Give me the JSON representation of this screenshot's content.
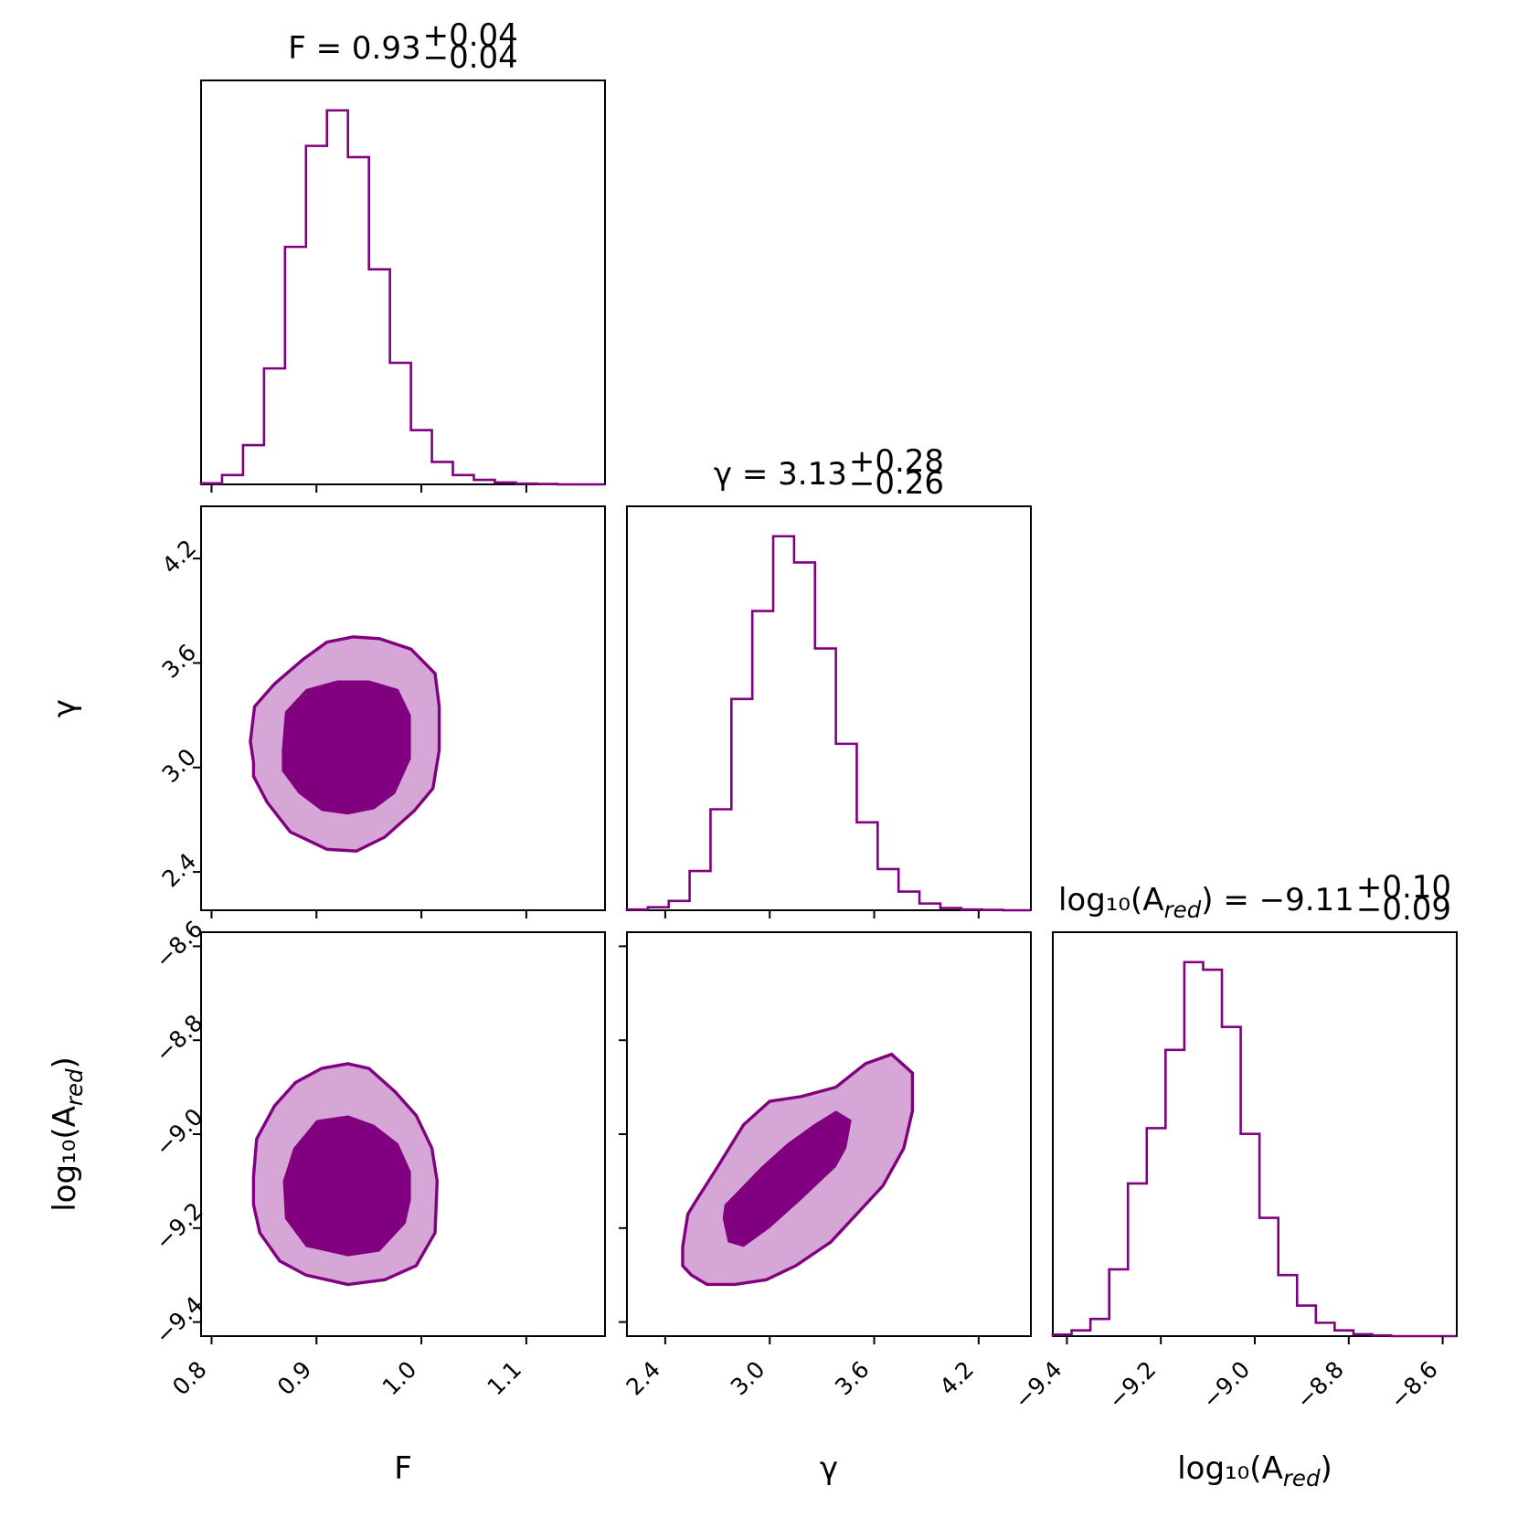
{
  "colors": {
    "series": "#800080",
    "inner_fill": "#800080",
    "outer_fill": "#d6a7d6"
  },
  "chart_data": {
    "type": "corner",
    "parameters": [
      {
        "key": "F",
        "title_prefix": "F = ",
        "median": "0.93",
        "plus": "+0.04",
        "minus": "−0.04",
        "range": [
          0.79,
          1.175
        ],
        "ticks": [
          0.8,
          0.9,
          1.0,
          1.1
        ],
        "tick_labels": [
          "0.8",
          "0.9",
          "1.0",
          "1.1"
        ],
        "hist": {
          "edges": [
            0.79,
            0.81,
            0.83,
            0.85,
            0.87,
            0.89,
            0.91,
            0.93,
            0.95,
            0.97,
            0.99,
            1.01,
            1.03,
            1.05,
            1.07,
            1.09,
            1.11,
            1.13,
            1.15,
            1.175
          ],
          "counts": [
            0.3,
            2.5,
            10.5,
            31,
            63.5,
            90.5,
            100,
            87.5,
            57.5,
            32.5,
            14.5,
            6,
            2.5,
            1.2,
            0.5,
            0.2,
            0.1,
            0,
            0
          ]
        }
      },
      {
        "key": "gamma",
        "title_prefix": "γ = ",
        "median": "3.13",
        "plus": "+0.28",
        "minus": "−0.26",
        "range": [
          2.18,
          4.5
        ],
        "ticks": [
          2.4,
          3.0,
          3.6,
          4.2
        ],
        "tick_labels": [
          "2.4",
          "3.0",
          "3.6",
          "4.2"
        ],
        "hist": {
          "edges": [
            2.18,
            2.3,
            2.42,
            2.54,
            2.66,
            2.78,
            2.9,
            3.02,
            3.14,
            3.26,
            3.38,
            3.5,
            3.62,
            3.74,
            3.86,
            3.98,
            4.1,
            4.22,
            4.34,
            4.5
          ],
          "counts": [
            0.2,
            0.8,
            2.5,
            10.5,
            27,
            56.5,
            80,
            100,
            93,
            70,
            44.5,
            23.5,
            11,
            5,
            1.8,
            0.6,
            0.2,
            0.1,
            0
          ]
        }
      },
      {
        "key": "log10_A_red",
        "title_prefix": "log₁₀(A",
        "title_sub": "red",
        "title_suffix": ") = ",
        "median": "−9.11",
        "plus": "+0.10",
        "minus": "−0.09",
        "range": [
          -9.43,
          -8.57
        ],
        "ticks": [
          -9.4,
          -9.2,
          -9.0,
          -8.8,
          -8.6
        ],
        "tick_labels": [
          "−9.4",
          "−9.2",
          "−9.0",
          "−8.8",
          "−8.6"
        ],
        "hist": {
          "edges": [
            -9.43,
            -9.39,
            -9.35,
            -9.31,
            -9.27,
            -9.23,
            -9.19,
            -9.15,
            -9.11,
            -9.07,
            -9.03,
            -8.99,
            -8.95,
            -8.91,
            -8.87,
            -8.83,
            -8.79,
            -8.75,
            -8.71,
            -8.57
          ],
          "counts": [
            0.4,
            1.5,
            4.5,
            17.5,
            40,
            54.5,
            75,
            98,
            96,
            81,
            53,
            31,
            16,
            8,
            3.5,
            1.5,
            0.5,
            0.2,
            0
          ]
        }
      }
    ],
    "x_labels": [
      "F",
      "γ",
      "log₁₀(A"
    ],
    "x_label_sub": [
      "",
      "",
      "red"
    ],
    "x_label_suffix": [
      "",
      "",
      ")"
    ],
    "y_labels": [
      "",
      "γ",
      "log₁₀(A"
    ],
    "y_label_sub": [
      "",
      "",
      "red"
    ],
    "y_label_suffix": [
      "",
      "",
      ")"
    ],
    "contours": [
      {
        "x_param": 0,
        "y_param": 1,
        "outer": [
          [
            0.84,
            3.03
          ],
          [
            0.837,
            3.15
          ],
          [
            0.841,
            3.35
          ],
          [
            0.86,
            3.48
          ],
          [
            0.887,
            3.62
          ],
          [
            0.91,
            3.72
          ],
          [
            0.935,
            3.75
          ],
          [
            0.96,
            3.74
          ],
          [
            0.99,
            3.68
          ],
          [
            1.013,
            3.54
          ],
          [
            1.017,
            3.35
          ],
          [
            1.017,
            3.1
          ],
          [
            1.011,
            2.88
          ],
          [
            0.993,
            2.75
          ],
          [
            0.965,
            2.6
          ],
          [
            0.938,
            2.52
          ],
          [
            0.91,
            2.53
          ],
          [
            0.875,
            2.63
          ],
          [
            0.853,
            2.8
          ],
          [
            0.84,
            2.95
          ]
        ],
        "inner": [
          [
            0.867,
            3.1
          ],
          [
            0.87,
            3.32
          ],
          [
            0.89,
            3.45
          ],
          [
            0.92,
            3.5
          ],
          [
            0.95,
            3.5
          ],
          [
            0.978,
            3.45
          ],
          [
            0.99,
            3.3
          ],
          [
            0.99,
            3.05
          ],
          [
            0.975,
            2.85
          ],
          [
            0.955,
            2.76
          ],
          [
            0.93,
            2.73
          ],
          [
            0.905,
            2.75
          ],
          [
            0.883,
            2.85
          ],
          [
            0.867,
            2.98
          ]
        ]
      },
      {
        "x_param": 0,
        "y_param": 2,
        "outer": [
          [
            0.84,
            -9.09
          ],
          [
            0.84,
            -9.15
          ],
          [
            0.846,
            -9.21
          ],
          [
            0.865,
            -9.27
          ],
          [
            0.89,
            -9.3
          ],
          [
            0.93,
            -9.32
          ],
          [
            0.965,
            -9.31
          ],
          [
            0.995,
            -9.28
          ],
          [
            1.013,
            -9.21
          ],
          [
            1.015,
            -9.1
          ],
          [
            1.01,
            -9.03
          ],
          [
            0.995,
            -8.96
          ],
          [
            0.975,
            -8.91
          ],
          [
            0.95,
            -8.86
          ],
          [
            0.93,
            -8.85
          ],
          [
            0.905,
            -8.86
          ],
          [
            0.88,
            -8.89
          ],
          [
            0.86,
            -8.94
          ],
          [
            0.843,
            -9.01
          ]
        ],
        "inner": [
          [
            0.868,
            -9.1
          ],
          [
            0.87,
            -9.18
          ],
          [
            0.89,
            -9.24
          ],
          [
            0.93,
            -9.26
          ],
          [
            0.96,
            -9.25
          ],
          [
            0.985,
            -9.19
          ],
          [
            0.99,
            -9.14
          ],
          [
            0.99,
            -9.08
          ],
          [
            0.978,
            -9.02
          ],
          [
            0.955,
            -8.98
          ],
          [
            0.93,
            -8.96
          ],
          [
            0.9,
            -8.97
          ],
          [
            0.878,
            -9.03
          ]
        ]
      },
      {
        "x_param": 1,
        "y_param": 2,
        "outer": [
          [
            2.5,
            -9.28
          ],
          [
            2.5,
            -9.24
          ],
          [
            2.53,
            -9.17
          ],
          [
            2.58,
            -9.14
          ],
          [
            2.7,
            -9.07
          ],
          [
            2.85,
            -8.98
          ],
          [
            3.0,
            -8.93
          ],
          [
            3.18,
            -8.92
          ],
          [
            3.38,
            -8.9
          ],
          [
            3.55,
            -8.85
          ],
          [
            3.7,
            -8.83
          ],
          [
            3.82,
            -8.87
          ],
          [
            3.82,
            -8.95
          ],
          [
            3.77,
            -9.03
          ],
          [
            3.65,
            -9.11
          ],
          [
            3.5,
            -9.17
          ],
          [
            3.35,
            -9.23
          ],
          [
            3.15,
            -9.28
          ],
          [
            2.98,
            -9.31
          ],
          [
            2.8,
            -9.32
          ],
          [
            2.64,
            -9.32
          ],
          [
            2.55,
            -9.3
          ]
        ],
        "inner": [
          [
            2.73,
            -9.18
          ],
          [
            2.76,
            -9.23
          ],
          [
            2.85,
            -9.24
          ],
          [
            3.0,
            -9.2
          ],
          [
            3.18,
            -9.14
          ],
          [
            3.38,
            -9.07
          ],
          [
            3.44,
            -9.03
          ],
          [
            3.47,
            -8.97
          ],
          [
            3.38,
            -8.95
          ],
          [
            3.25,
            -8.98
          ],
          [
            3.1,
            -9.02
          ],
          [
            2.95,
            -9.07
          ],
          [
            2.82,
            -9.12
          ],
          [
            2.74,
            -9.15
          ]
        ]
      }
    ]
  }
}
